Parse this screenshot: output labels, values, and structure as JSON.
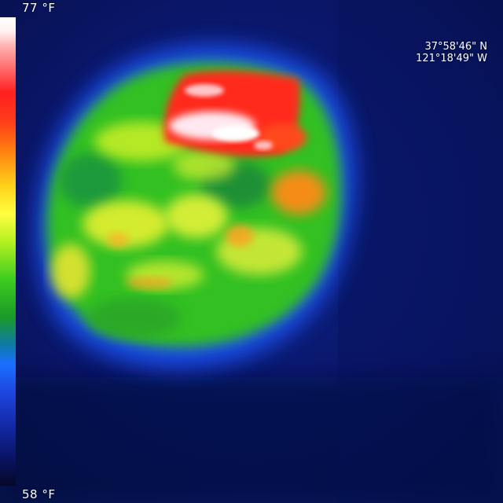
{
  "temperature_scale": {
    "max_label": "77 °F",
    "min_label": "58 °F",
    "max_value_f": 77,
    "min_value_f": 58
  },
  "gps": {
    "latitude": "37°58'46\" N",
    "longitude": "121°18'49\" W"
  },
  "colors": {
    "background": "#0a1460",
    "hot": "#ff2a1a",
    "hottest": "#ffffff",
    "warm": "#ffd21a",
    "mid": "#3ccc20",
    "cool": "#1a70ff",
    "cold": "#050826"
  }
}
